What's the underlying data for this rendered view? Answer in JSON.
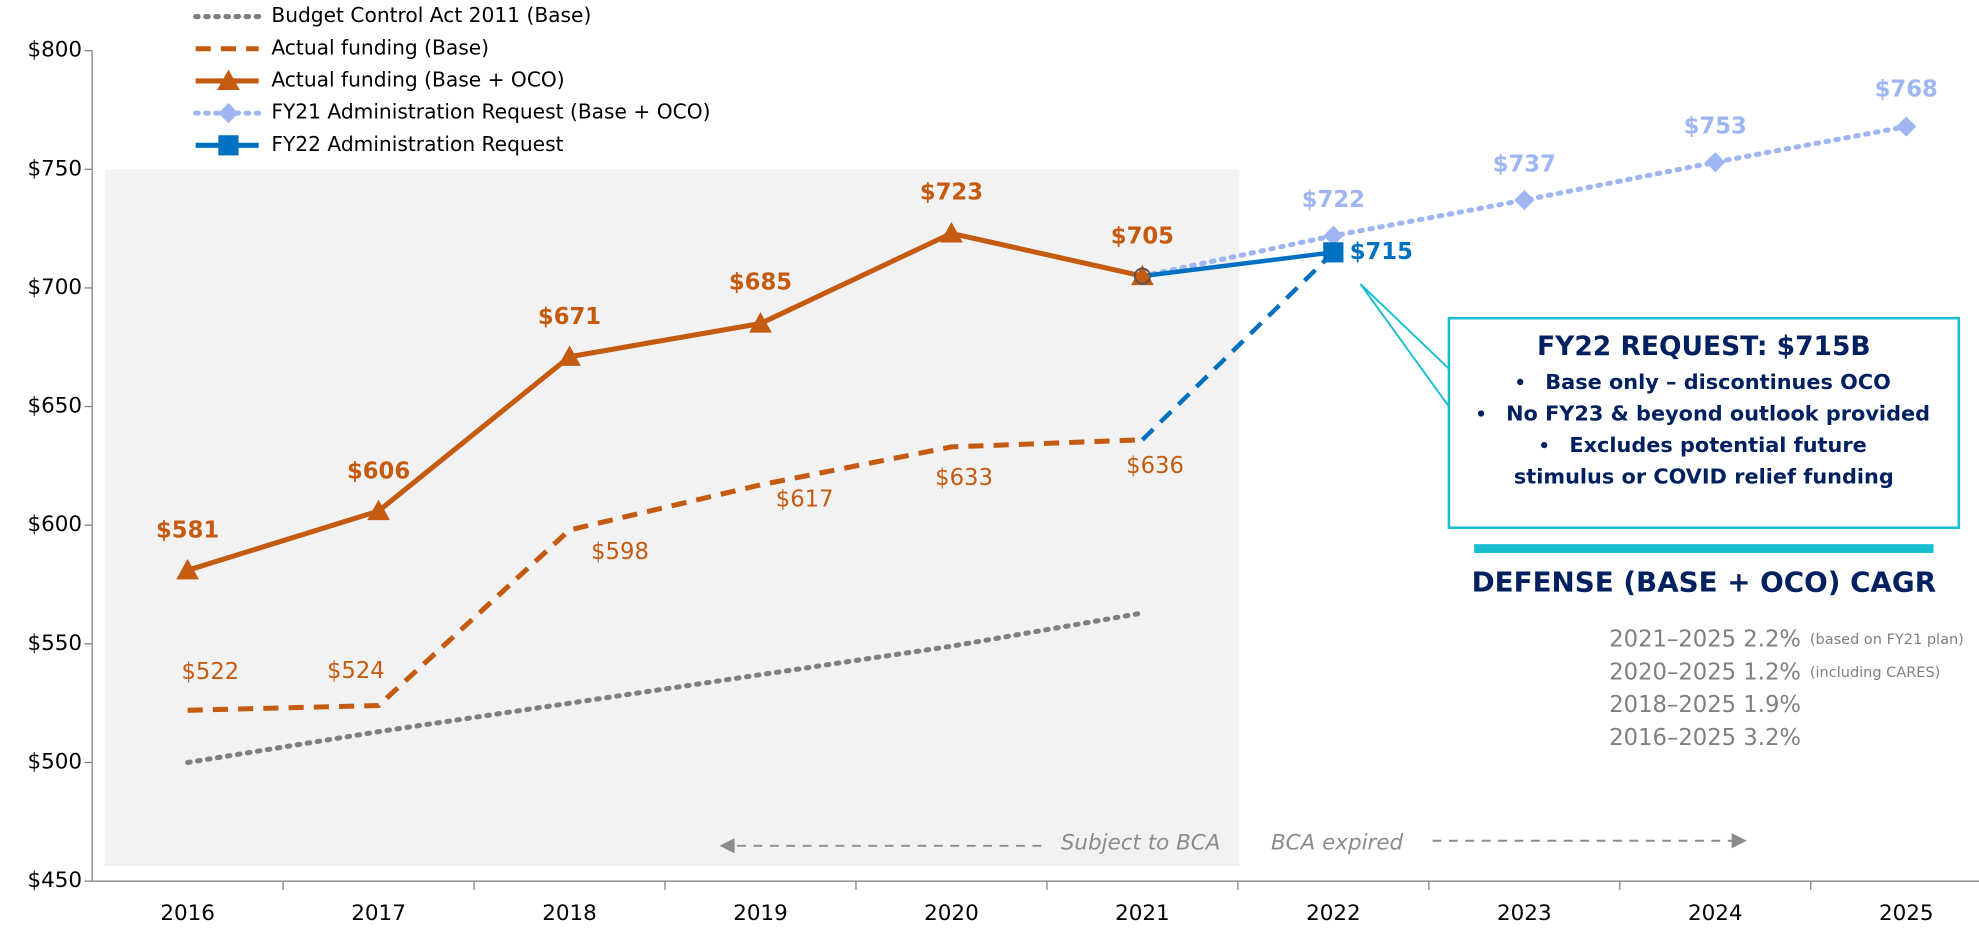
{
  "chart_data": {
    "type": "line",
    "categories": [
      "2016",
      "2017",
      "2018",
      "2019",
      "2020",
      "2021",
      "2022",
      "2023",
      "2024",
      "2025"
    ],
    "ylim": [
      450,
      800
    ],
    "yticks": [
      {
        "value": 450,
        "label": "$450"
      },
      {
        "value": 500,
        "label": "$500"
      },
      {
        "value": 550,
        "label": "$550"
      },
      {
        "value": 600,
        "label": "$600"
      },
      {
        "value": 650,
        "label": "$650"
      },
      {
        "value": 700,
        "label": "$700"
      },
      {
        "value": 750,
        "label": "$750"
      },
      {
        "value": 800,
        "label": "$800"
      }
    ],
    "grid": false,
    "legend": "top-left",
    "series": [
      {
        "name": "Budget Control Act 2011 (Base)",
        "color": "#7f7f7f",
        "line_style": "dotted",
        "marker": "none",
        "values": [
          500,
          513,
          525,
          537,
          549,
          563,
          null,
          null,
          null,
          null
        ]
      },
      {
        "name": "Actual funding (Base)",
        "color": "#c55a11",
        "line_style": "dashed",
        "marker": "none",
        "values": [
          522,
          524,
          598,
          617,
          633,
          636,
          null,
          null,
          null,
          null
        ],
        "value_labels": [
          "$522",
          "$524",
          "$598",
          "$617",
          "$633",
          "$636",
          null,
          null,
          null,
          null
        ]
      },
      {
        "name": "Actual funding (Base + OCO)",
        "color": "#c55a11",
        "line_style": "solid",
        "marker": "triangle",
        "values": [
          581,
          606,
          671,
          685,
          723,
          705,
          null,
          null,
          null,
          null
        ],
        "value_labels": [
          "$581",
          "$606",
          "$671",
          "$685",
          "$723",
          "$705",
          null,
          null,
          null,
          null
        ]
      },
      {
        "name": "FY21 Administration Request (Base + OCO)",
        "color": "#9fb6f2",
        "line_style": "dotted",
        "marker": "diamond",
        "values": [
          null,
          null,
          null,
          null,
          null,
          705,
          722,
          737,
          753,
          768
        ],
        "value_labels": [
          null,
          null,
          null,
          null,
          null,
          null,
          "$722",
          "$737",
          "$753",
          "$768"
        ]
      },
      {
        "name": "FY22 Administration Request",
        "color": "#0070c0",
        "line_style": "solid",
        "marker": "square",
        "values": [
          null,
          null,
          null,
          null,
          null,
          705,
          715,
          null,
          null,
          null
        ],
        "value_labels": [
          null,
          null,
          null,
          null,
          null,
          null,
          "$715",
          null,
          null,
          null
        ]
      }
    ],
    "annotations": {
      "bca_left": "Subject to BCA",
      "bca_right": "BCA expired",
      "callout": {
        "title": "FY22 REQUEST: $715B",
        "bullets": [
          "Base only – discontinues OCO",
          "No FY23 & beyond outlook provided",
          "Excludes potential future stimulus or COVID relief funding"
        ]
      },
      "cagr": {
        "title": "DEFENSE (BASE + OCO) CAGR",
        "rows": [
          {
            "text": "2021–2025 2.2%",
            "note": "(based on FY21 plan)"
          },
          {
            "text": "2020–2025 1.2%",
            "note": "(including CARES)"
          },
          {
            "text": "2018–2025 1.9%"
          },
          {
            "text": "2016–2025 3.2%"
          }
        ]
      }
    }
  }
}
